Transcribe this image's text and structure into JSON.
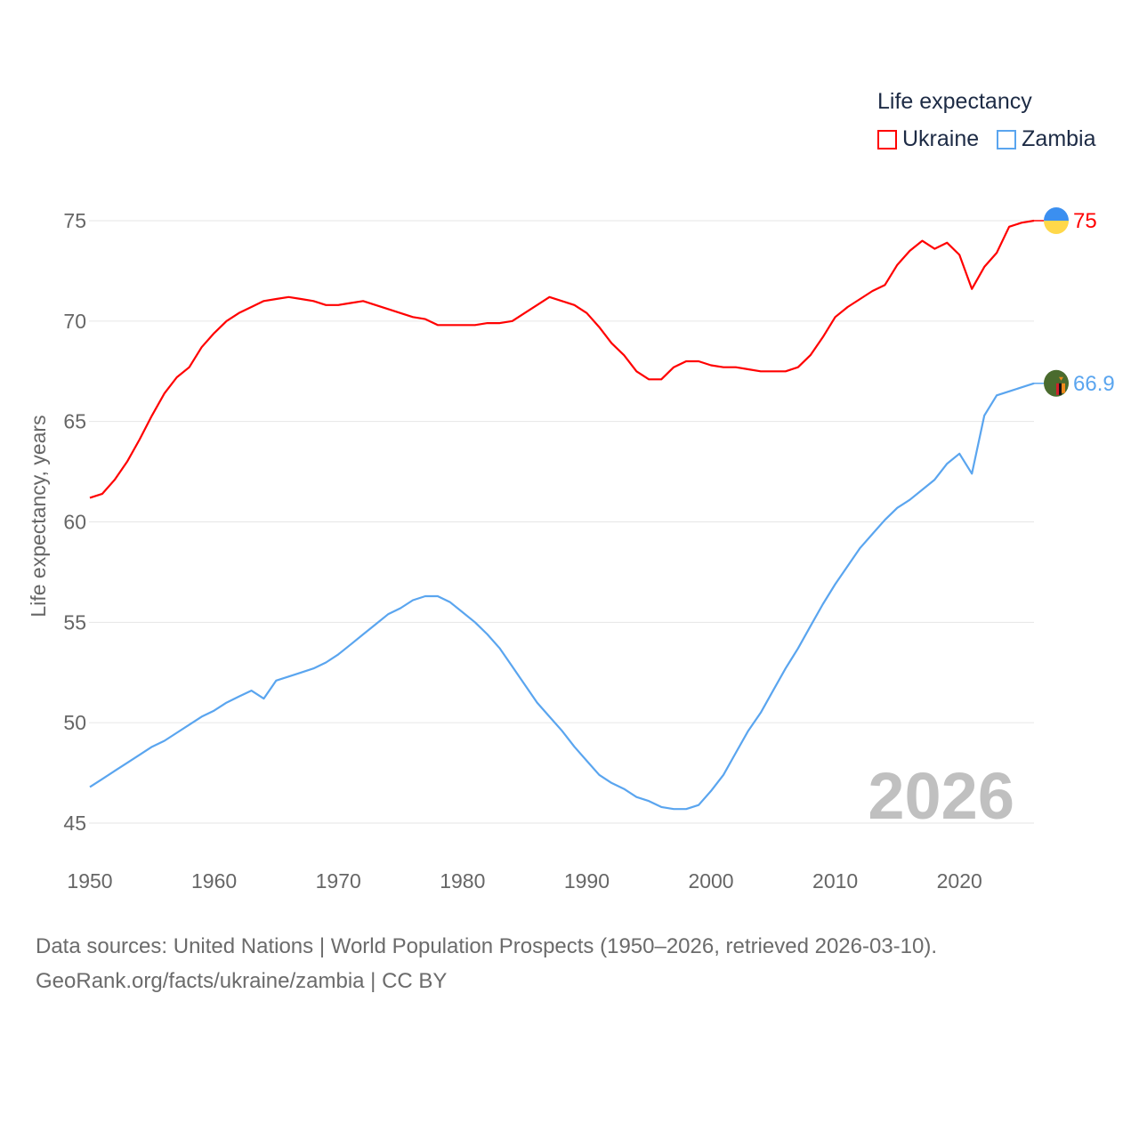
{
  "chart_data": {
    "type": "line",
    "title": "Life expectancy",
    "xlabel": "",
    "ylabel": "Life expectancy, years",
    "xlim": [
      1950,
      2026
    ],
    "ylim": [
      45,
      76.5
    ],
    "x_ticks": [
      "1950",
      "1960",
      "1970",
      "1980",
      "1990",
      "2000",
      "2010",
      "2020"
    ],
    "y_ticks": [
      "45",
      "50",
      "55",
      "60",
      "65",
      "70",
      "75"
    ],
    "grid": true,
    "legend_position": "top-right",
    "year_watermark": "2026",
    "x": [
      1950,
      1951,
      1952,
      1953,
      1954,
      1955,
      1956,
      1957,
      1958,
      1959,
      1960,
      1961,
      1962,
      1963,
      1964,
      1965,
      1966,
      1967,
      1968,
      1969,
      1970,
      1971,
      1972,
      1973,
      1974,
      1975,
      1976,
      1977,
      1978,
      1979,
      1980,
      1981,
      1982,
      1983,
      1984,
      1985,
      1986,
      1987,
      1988,
      1989,
      1990,
      1991,
      1992,
      1993,
      1994,
      1995,
      1996,
      1997,
      1998,
      1999,
      2000,
      2001,
      2002,
      2003,
      2004,
      2005,
      2006,
      2007,
      2008,
      2009,
      2010,
      2011,
      2012,
      2013,
      2014,
      2015,
      2016,
      2017,
      2018,
      2019,
      2020,
      2021,
      2022,
      2023,
      2024,
      2025,
      2026
    ],
    "series": [
      {
        "name": "Ukraine",
        "color": "#ff0000",
        "end_label": "75",
        "values": [
          61.2,
          61.4,
          62.1,
          63.0,
          64.1,
          65.3,
          66.4,
          67.2,
          67.7,
          68.7,
          69.4,
          70.0,
          70.4,
          70.7,
          71.0,
          71.1,
          71.2,
          71.1,
          71.0,
          70.8,
          70.8,
          70.9,
          71.0,
          70.8,
          70.6,
          70.4,
          70.2,
          70.1,
          69.8,
          69.8,
          69.8,
          69.8,
          69.9,
          69.9,
          70.0,
          70.4,
          70.8,
          71.2,
          71.0,
          70.8,
          70.4,
          69.7,
          68.9,
          68.3,
          67.5,
          67.1,
          67.1,
          67.7,
          68.0,
          68.0,
          67.8,
          67.7,
          67.7,
          67.6,
          67.5,
          67.5,
          67.5,
          67.7,
          68.3,
          69.2,
          70.2,
          70.7,
          71.1,
          71.5,
          71.8,
          72.8,
          73.5,
          74.0,
          73.6,
          73.9,
          73.3,
          71.6,
          72.7,
          73.4,
          74.7,
          74.9,
          75.0
        ]
      },
      {
        "name": "Zambia",
        "color": "#5aa5ef",
        "end_label": "66.9",
        "values": [
          46.8,
          47.2,
          47.6,
          48.0,
          48.4,
          48.8,
          49.1,
          49.5,
          49.9,
          50.3,
          50.6,
          51.0,
          51.3,
          51.6,
          51.2,
          52.1,
          52.3,
          52.5,
          52.7,
          53.0,
          53.4,
          53.9,
          54.4,
          54.9,
          55.4,
          55.7,
          56.1,
          56.3,
          56.3,
          56.0,
          55.5,
          55.0,
          54.4,
          53.7,
          52.8,
          51.9,
          51.0,
          50.3,
          49.6,
          48.8,
          48.1,
          47.4,
          47.0,
          46.7,
          46.3,
          46.1,
          45.8,
          45.7,
          45.7,
          45.9,
          46.6,
          47.4,
          48.5,
          49.6,
          50.5,
          51.6,
          52.7,
          53.7,
          54.8,
          55.9,
          56.9,
          57.8,
          58.7,
          59.4,
          60.1,
          60.7,
          61.1,
          61.6,
          62.1,
          62.9,
          63.4,
          62.4,
          65.3,
          66.3,
          66.5,
          66.7,
          66.9
        ]
      }
    ]
  },
  "source": {
    "line1": "Data sources: United Nations | World Population Prospects (1950–2026, retrieved 2026-03-10).",
    "line2": "GeoRank.org/facts/ukraine/zambia | CC BY"
  }
}
